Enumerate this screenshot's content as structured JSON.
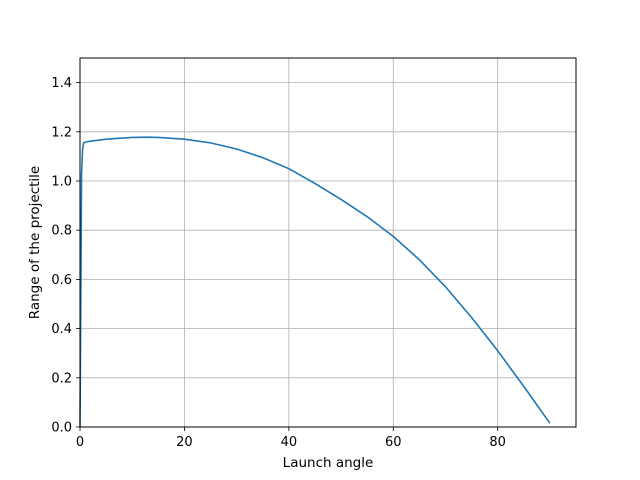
{
  "chart_data": {
    "type": "line",
    "title": "",
    "xlabel": "Launch angle",
    "ylabel": "Range of the projectile",
    "xlim": [
      0,
      95
    ],
    "ylim": [
      0,
      1.5
    ],
    "xticks": [
      0,
      20,
      40,
      60,
      80
    ],
    "yticks": [
      0.0,
      0.2,
      0.4,
      0.6,
      0.8,
      1.0,
      1.2,
      1.4
    ],
    "xtick_labels": [
      "0",
      "20",
      "40",
      "60",
      "80"
    ],
    "ytick_labels": [
      "0.0",
      "0.2",
      "0.4",
      "0.6",
      "0.8",
      "1.0",
      "1.2",
      "1.4"
    ],
    "grid": true,
    "line_color": "#1f77b4",
    "series": [
      {
        "x": [
          0,
          0.3,
          0.5,
          0.7,
          1,
          2,
          5,
          10,
          13,
          15,
          20,
          25,
          30,
          35,
          40,
          45,
          50,
          55,
          60,
          65,
          70,
          75,
          80,
          85,
          90
        ],
        "y": [
          0.0,
          1.03,
          1.13,
          1.155,
          1.158,
          1.162,
          1.17,
          1.177,
          1.178,
          1.177,
          1.17,
          1.155,
          1.13,
          1.095,
          1.05,
          0.99,
          0.925,
          0.855,
          0.775,
          0.68,
          0.57,
          0.445,
          0.31,
          0.165,
          0.015
        ]
      }
    ]
  }
}
